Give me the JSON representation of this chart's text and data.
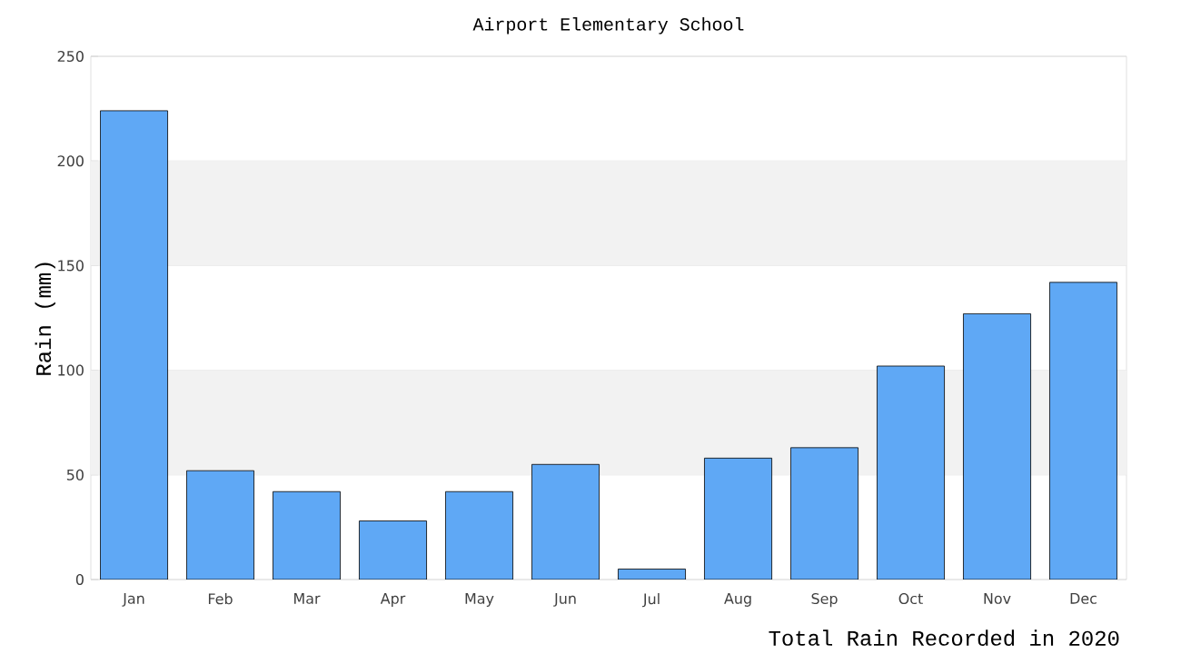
{
  "chart_data": {
    "type": "bar",
    "title": "Airport Elementary School",
    "xlabel": "Total Rain Recorded in 2020",
    "ylabel": "Rain (mm)",
    "categories": [
      "Jan",
      "Feb",
      "Mar",
      "Apr",
      "May",
      "Jun",
      "Jul",
      "Aug",
      "Sep",
      "Oct",
      "Nov",
      "Dec"
    ],
    "values": [
      224,
      52,
      42,
      28,
      42,
      55,
      5,
      58,
      63,
      102,
      127,
      142
    ],
    "color": "#5fa8f5",
    "ylim": [
      0,
      250
    ],
    "yticks": [
      0,
      50,
      100,
      150,
      200,
      250
    ],
    "grid": "y",
    "bands": [
      {
        "axis": "y",
        "from": 50,
        "to": 100,
        "color": "#f2f2f2"
      },
      {
        "axis": "y",
        "from": 150,
        "to": 200,
        "color": "#f2f2f2"
      }
    ]
  }
}
